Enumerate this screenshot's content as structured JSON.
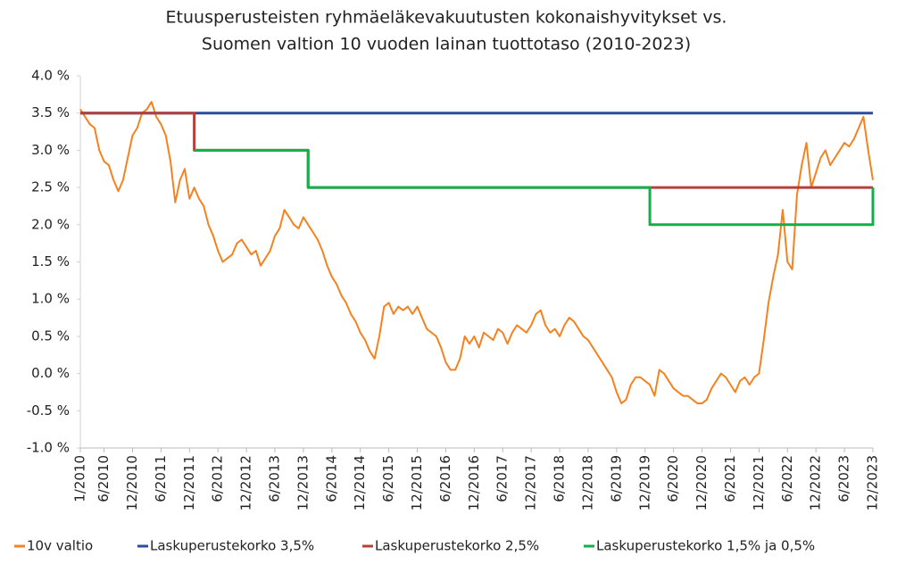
{
  "chart_data": {
    "type": "line",
    "title": [
      "Etuusperusteisten ryhmäeläkevakuutusten kokonaishyvitykset vs.",
      "Suomen valtion 10 vuoden lainan tuottotaso (2010-2023)"
    ],
    "categories": [
      "1/2010",
      null,
      null,
      null,
      null,
      "6/2010",
      null,
      null,
      null,
      null,
      null,
      "12/2010",
      null,
      null,
      null,
      null,
      null,
      "6/2011",
      null,
      null,
      null,
      null,
      null,
      "12/2011",
      null,
      null,
      null,
      null,
      null,
      "6/2012",
      null,
      null,
      null,
      null,
      null,
      "12/2012",
      null,
      null,
      null,
      null,
      null,
      "6/2013",
      null,
      null,
      null,
      null,
      null,
      "12/2013",
      null,
      null,
      null,
      null,
      null,
      "6/2014",
      null,
      null,
      null,
      null,
      null,
      "12/2014",
      null,
      null,
      null,
      null,
      null,
      "6/2015",
      null,
      null,
      null,
      null,
      null,
      "12/2015",
      null,
      null,
      null,
      null,
      null,
      "6/2016",
      null,
      null,
      null,
      null,
      null,
      "12/2016",
      null,
      null,
      null,
      null,
      null,
      "6/2017",
      null,
      null,
      null,
      null,
      null,
      "12/2017",
      null,
      null,
      null,
      null,
      null,
      "6/2018",
      null,
      null,
      null,
      null,
      null,
      "12/2018",
      null,
      null,
      null,
      null,
      null,
      "6/2019",
      null,
      null,
      null,
      null,
      null,
      "12/2019",
      null,
      null,
      null,
      null,
      null,
      "6/2020",
      null,
      null,
      null,
      null,
      null,
      "12/2020",
      null,
      null,
      null,
      null,
      null,
      "6/2021",
      null,
      null,
      null,
      null,
      null,
      "12/2021",
      null,
      null,
      null,
      null,
      null,
      "6/2022",
      null,
      null,
      null,
      null,
      null,
      "12/2022",
      null,
      null,
      null,
      null,
      null,
      "6/2023",
      null,
      null,
      null,
      null,
      null,
      "12/2023"
    ],
    "series": [
      {
        "name": "10v valtio",
        "color": "#f5821f",
        "step": false,
        "values": [
          3.55,
          3.45,
          3.35,
          3.3,
          3.0,
          2.85,
          2.8,
          2.6,
          2.45,
          2.6,
          2.9,
          3.2,
          3.3,
          3.5,
          3.55,
          3.65,
          3.45,
          3.35,
          3.2,
          2.85,
          2.3,
          2.6,
          2.75,
          2.35,
          2.5,
          2.35,
          2.25,
          2.0,
          1.85,
          1.65,
          1.5,
          1.55,
          1.6,
          1.75,
          1.8,
          1.7,
          1.6,
          1.65,
          1.45,
          1.55,
          1.65,
          1.85,
          1.95,
          2.2,
          2.1,
          2.0,
          1.95,
          2.1,
          2.0,
          1.9,
          1.8,
          1.65,
          1.45,
          1.3,
          1.2,
          1.05,
          0.95,
          0.8,
          0.7,
          0.55,
          0.45,
          0.3,
          0.2,
          0.5,
          0.9,
          0.95,
          0.8,
          0.9,
          0.85,
          0.9,
          0.8,
          0.9,
          0.75,
          0.6,
          0.55,
          0.5,
          0.35,
          0.15,
          0.05,
          0.05,
          0.2,
          0.5,
          0.4,
          0.5,
          0.35,
          0.55,
          0.5,
          0.45,
          0.6,
          0.55,
          0.4,
          0.55,
          0.65,
          0.6,
          0.55,
          0.65,
          0.8,
          0.85,
          0.65,
          0.55,
          0.6,
          0.5,
          0.65,
          0.75,
          0.7,
          0.6,
          0.5,
          0.45,
          0.35,
          0.25,
          0.15,
          0.05,
          -0.05,
          -0.25,
          -0.4,
          -0.35,
          -0.15,
          -0.05,
          -0.05,
          -0.1,
          -0.15,
          -0.3,
          0.05,
          0.0,
          -0.1,
          -0.2,
          -0.25,
          -0.3,
          -0.3,
          -0.35,
          -0.4,
          -0.4,
          -0.35,
          -0.2,
          -0.1,
          0.0,
          -0.05,
          -0.15,
          -0.25,
          -0.1,
          -0.05,
          -0.15,
          -0.05,
          0.0,
          0.45,
          0.95,
          1.3,
          1.6,
          2.2,
          1.5,
          1.4,
          2.4,
          2.8,
          3.1,
          2.5,
          2.7,
          2.9,
          3.0,
          2.8,
          2.9,
          3.0,
          3.1,
          3.05,
          3.15,
          3.3,
          3.45,
          3.0,
          2.6
        ]
      },
      {
        "name": "Laskuperustekorko 3,5%",
        "color": "#2e4a9e",
        "step": true,
        "values": [
          3.5,
          3.5,
          3.5,
          3.5,
          3.5,
          3.5,
          3.5,
          3.5,
          3.5,
          3.5,
          3.5,
          3.5,
          3.5,
          3.5,
          3.5,
          3.5,
          3.5,
          3.5,
          3.5,
          3.5,
          3.5,
          3.5,
          3.5,
          3.5,
          3.5,
          3.5,
          3.5,
          3.5,
          3.5,
          3.5,
          3.5,
          3.5,
          3.5,
          3.5,
          3.5,
          3.5,
          3.5,
          3.5,
          3.5,
          3.5,
          3.5,
          3.5,
          3.5,
          3.5,
          3.5,
          3.5,
          3.5,
          3.5,
          3.5,
          3.5,
          3.5,
          3.5,
          3.5,
          3.5,
          3.5,
          3.5,
          3.5,
          3.5,
          3.5,
          3.5,
          3.5,
          3.5,
          3.5,
          3.5,
          3.5,
          3.5,
          3.5,
          3.5,
          3.5,
          3.5,
          3.5,
          3.5,
          3.5,
          3.5,
          3.5,
          3.5,
          3.5,
          3.5,
          3.5,
          3.5,
          3.5,
          3.5,
          3.5,
          3.5,
          3.5,
          3.5,
          3.5,
          3.5,
          3.5,
          3.5,
          3.5,
          3.5,
          3.5,
          3.5,
          3.5,
          3.5,
          3.5,
          3.5,
          3.5,
          3.5,
          3.5,
          3.5,
          3.5,
          3.5,
          3.5,
          3.5,
          3.5,
          3.5,
          3.5,
          3.5,
          3.5,
          3.5,
          3.5,
          3.5,
          3.5,
          3.5,
          3.5,
          3.5,
          3.5,
          3.5,
          3.5,
          3.5,
          3.5,
          3.5,
          3.5,
          3.5,
          3.5,
          3.5,
          3.5,
          3.5,
          3.5,
          3.5,
          3.5,
          3.5,
          3.5,
          3.5,
          3.5,
          3.5,
          3.5,
          3.5,
          3.5,
          3.5,
          3.5,
          3.5,
          3.5,
          3.5,
          3.5,
          3.5,
          3.5,
          3.5,
          3.5,
          3.5,
          3.5,
          3.5,
          3.5,
          3.5,
          3.5,
          3.5,
          3.5,
          3.5,
          3.5,
          3.5,
          3.5,
          3.5,
          3.5,
          3.5,
          3.5,
          3.5
        ]
      },
      {
        "name": "Laskuperustekorko 2,5%",
        "color": "#b5403a",
        "step": true,
        "values": [
          3.5,
          3.5,
          3.5,
          3.5,
          3.5,
          3.5,
          3.5,
          3.5,
          3.5,
          3.5,
          3.5,
          3.5,
          3.5,
          3.5,
          3.5,
          3.5,
          3.5,
          3.5,
          3.5,
          3.5,
          3.5,
          3.5,
          3.5,
          3.5,
          3.0,
          3.0,
          3.0,
          3.0,
          3.0,
          3.0,
          3.0,
          3.0,
          3.0,
          3.0,
          3.0,
          3.0,
          3.0,
          3.0,
          3.0,
          3.0,
          3.0,
          3.0,
          3.0,
          3.0,
          3.0,
          3.0,
          3.0,
          3.0,
          2.5,
          2.5,
          2.5,
          2.5,
          2.5,
          2.5,
          2.5,
          2.5,
          2.5,
          2.5,
          2.5,
          2.5,
          2.5,
          2.5,
          2.5,
          2.5,
          2.5,
          2.5,
          2.5,
          2.5,
          2.5,
          2.5,
          2.5,
          2.5,
          2.5,
          2.5,
          2.5,
          2.5,
          2.5,
          2.5,
          2.5,
          2.5,
          2.5,
          2.5,
          2.5,
          2.5,
          2.5,
          2.5,
          2.5,
          2.5,
          2.5,
          2.5,
          2.5,
          2.5,
          2.5,
          2.5,
          2.5,
          2.5,
          2.5,
          2.5,
          2.5,
          2.5,
          2.5,
          2.5,
          2.5,
          2.5,
          2.5,
          2.5,
          2.5,
          2.5,
          2.5,
          2.5,
          2.5,
          2.5,
          2.5,
          2.5,
          2.5,
          2.5,
          2.5,
          2.5,
          2.5,
          2.5,
          2.5,
          2.5,
          2.5,
          2.5,
          2.5,
          2.5,
          2.5,
          2.5,
          2.5,
          2.5,
          2.5,
          2.5,
          2.5,
          2.5,
          2.5,
          2.5,
          2.5,
          2.5,
          2.5,
          2.5,
          2.5,
          2.5,
          2.5,
          2.5,
          2.5,
          2.5,
          2.5,
          2.5,
          2.5,
          2.5,
          2.5,
          2.5,
          2.5,
          2.5,
          2.5,
          2.5,
          2.5,
          2.5,
          2.5,
          2.5,
          2.5,
          2.5,
          2.5,
          2.5,
          2.5,
          2.5,
          2.5,
          2.5
        ]
      },
      {
        "name": "Laskuperustekorko 1,5% ja 0,5%",
        "color": "#12b04a",
        "step": true,
        "values": [
          null,
          null,
          null,
          null,
          null,
          null,
          null,
          null,
          null,
          null,
          null,
          null,
          null,
          null,
          null,
          null,
          null,
          null,
          null,
          null,
          null,
          null,
          null,
          null,
          3.0,
          3.0,
          3.0,
          3.0,
          3.0,
          3.0,
          3.0,
          3.0,
          3.0,
          3.0,
          3.0,
          3.0,
          3.0,
          3.0,
          3.0,
          3.0,
          3.0,
          3.0,
          3.0,
          3.0,
          3.0,
          3.0,
          3.0,
          3.0,
          2.5,
          2.5,
          2.5,
          2.5,
          2.5,
          2.5,
          2.5,
          2.5,
          2.5,
          2.5,
          2.5,
          2.5,
          2.5,
          2.5,
          2.5,
          2.5,
          2.5,
          2.5,
          2.5,
          2.5,
          2.5,
          2.5,
          2.5,
          2.5,
          2.5,
          2.5,
          2.5,
          2.5,
          2.5,
          2.5,
          2.5,
          2.5,
          2.5,
          2.5,
          2.5,
          2.5,
          2.5,
          2.5,
          2.5,
          2.5,
          2.5,
          2.5,
          2.5,
          2.5,
          2.5,
          2.5,
          2.5,
          2.5,
          2.5,
          2.5,
          2.5,
          2.5,
          2.5,
          2.5,
          2.5,
          2.5,
          2.5,
          2.5,
          2.5,
          2.5,
          2.5,
          2.5,
          2.5,
          2.5,
          2.5,
          2.5,
          2.5,
          2.5,
          2.5,
          2.5,
          2.5,
          2.5,
          2.0,
          2.0,
          2.0,
          2.0,
          2.0,
          2.0,
          2.0,
          2.0,
          2.0,
          2.0,
          2.0,
          2.0,
          2.0,
          2.0,
          2.0,
          2.0,
          2.0,
          2.0,
          2.0,
          2.0,
          2.0,
          2.0,
          2.0,
          2.0,
          2.0,
          2.0,
          2.0,
          2.0,
          2.0,
          2.0,
          2.0,
          2.0,
          2.0,
          2.0,
          2.0,
          2.0,
          2.0,
          2.0,
          2.0,
          2.0,
          2.0,
          2.0,
          2.0,
          2.0,
          2.0,
          2.0,
          2.0,
          2.5
        ]
      }
    ],
    "ylim": [
      -1,
      4
    ],
    "yticks": [
      {
        "value": 4,
        "label": "4.0 %"
      },
      {
        "value": 3.5,
        "label": "3.5 %"
      },
      {
        "value": 3,
        "label": "3.0 %"
      },
      {
        "value": 2.5,
        "label": "2.5 %"
      },
      {
        "value": 2,
        "label": "2.0 %"
      },
      {
        "value": 1.5,
        "label": "1.5 %"
      },
      {
        "value": 1,
        "label": "1.0 %"
      },
      {
        "value": 0.5,
        "label": "0.5 %"
      },
      {
        "value": 0,
        "label": "0.0 %"
      },
      {
        "value": -0.5,
        "label": "-0.5 %"
      },
      {
        "value": -1,
        "label": "-1.0 %"
      }
    ],
    "grid": false,
    "legend": "bottom"
  }
}
